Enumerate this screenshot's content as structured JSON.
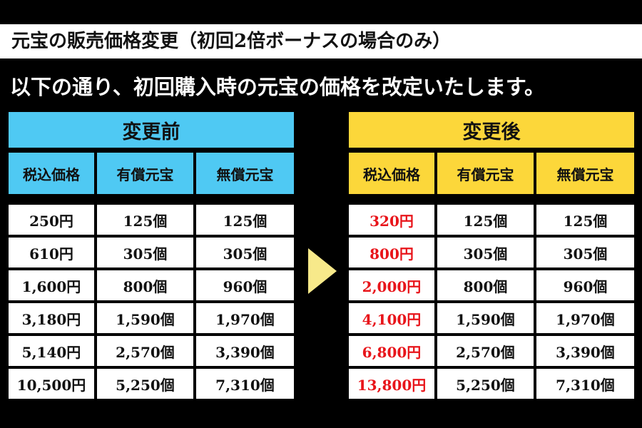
{
  "title": "元宝の販売価格変更（初回2倍ボーナスの場合のみ）",
  "subtitle": "以下の通り、初回購入時の元宝の価格を改定いたします。",
  "colors": {
    "background": "#000000",
    "before_accent": "#4fc9f3",
    "after_accent": "#fcd73a",
    "new_price": "#e8141a",
    "arrow": "#f7e98a"
  },
  "before": {
    "label": "変更前",
    "headers": [
      "税込価格",
      "有償元宝",
      "無償元宝"
    ],
    "rows": [
      [
        "250円",
        "125個",
        "125個"
      ],
      [
        "610円",
        "305個",
        "305個"
      ],
      [
        "1,600円",
        "800個",
        "960個"
      ],
      [
        "3,180円",
        "1,590個",
        "1,970個"
      ],
      [
        "5,140円",
        "2,570個",
        "3,390個"
      ],
      [
        "10,500円",
        "5,250個",
        "7,310個"
      ]
    ]
  },
  "after": {
    "label": "変更後",
    "headers": [
      "税込価格",
      "有償元宝",
      "無償元宝"
    ],
    "rows": [
      [
        "320円",
        "125個",
        "125個"
      ],
      [
        "800円",
        "305個",
        "305個"
      ],
      [
        "2,000円",
        "800個",
        "960個"
      ],
      [
        "4,100円",
        "1,590個",
        "1,970個"
      ],
      [
        "6,800円",
        "2,570個",
        "3,390個"
      ],
      [
        "13,800円",
        "5,250個",
        "7,310個"
      ]
    ]
  },
  "arrow_icon": "triangle-right-icon"
}
